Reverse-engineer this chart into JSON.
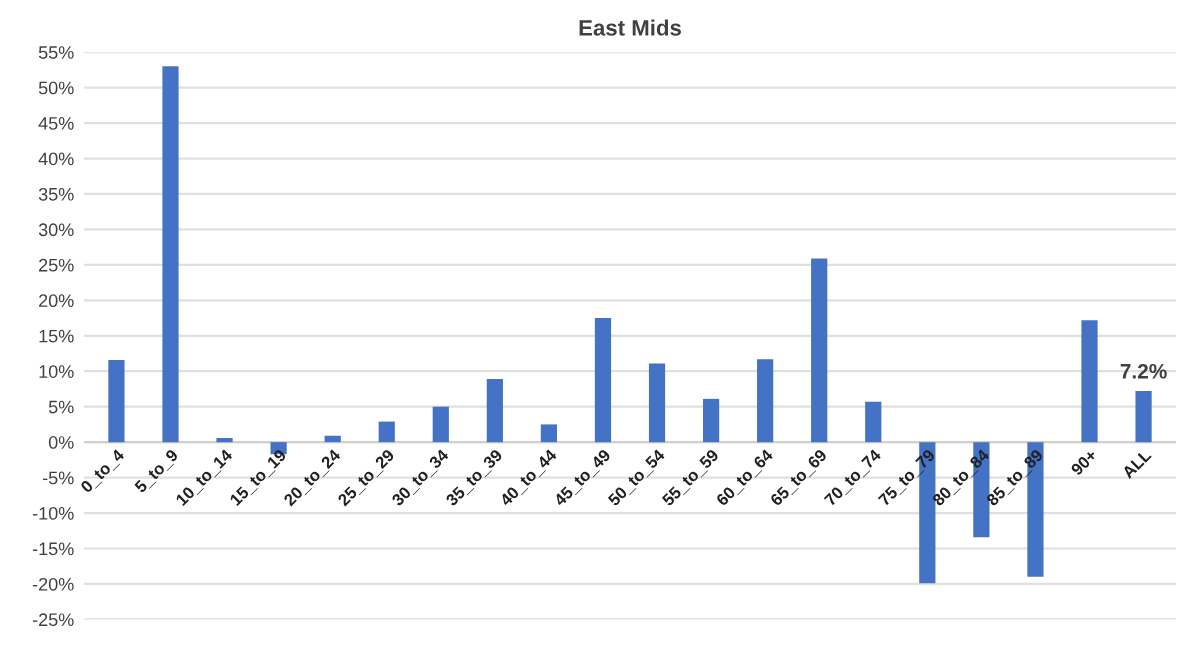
{
  "chart_data": {
    "type": "bar",
    "title": "East Mids",
    "categories": [
      "0_to_4",
      "5_to_9",
      "10_to_14",
      "15_to_19",
      "20_to_24",
      "25_to_29",
      "30_to_34",
      "35_to_39",
      "40_to_44",
      "45_to_49",
      "50_to_54",
      "55_to_59",
      "60_to_64",
      "65_to_69",
      "70_to_74",
      "75_to_79",
      "80_to_84",
      "85_to_89",
      "90+",
      "ALL"
    ],
    "values": [
      11.6,
      53.0,
      0.6,
      -1.7,
      0.9,
      2.9,
      5.0,
      8.9,
      2.5,
      17.5,
      11.1,
      6.1,
      11.7,
      25.9,
      5.7,
      -19.9,
      -13.4,
      -19.0,
      17.2,
      7.2
    ],
    "value_labels": [
      null,
      null,
      null,
      null,
      null,
      null,
      null,
      null,
      null,
      null,
      null,
      null,
      null,
      null,
      null,
      null,
      null,
      null,
      null,
      "7.2%"
    ],
    "color": "#4472c4",
    "ylim": [
      -25,
      55
    ],
    "yticks": [
      {
        "value": -25,
        "label": "-25%"
      },
      {
        "value": -20,
        "label": "-20%"
      },
      {
        "value": -15,
        "label": "-15%"
      },
      {
        "value": -10,
        "label": "-10%"
      },
      {
        "value": -5,
        "label": "-5%"
      },
      {
        "value": 0,
        "label": "0%"
      },
      {
        "value": 5,
        "label": "5%"
      },
      {
        "value": 10,
        "label": "10%"
      },
      {
        "value": 15,
        "label": "15%"
      },
      {
        "value": 20,
        "label": "20%"
      },
      {
        "value": 25,
        "label": "25%"
      },
      {
        "value": 30,
        "label": "30%"
      },
      {
        "value": 35,
        "label": "35%"
      },
      {
        "value": 40,
        "label": "40%"
      },
      {
        "value": 45,
        "label": "45%"
      },
      {
        "value": 50,
        "label": "50%"
      },
      {
        "value": 55,
        "label": "55%"
      }
    ],
    "grid": "y"
  }
}
